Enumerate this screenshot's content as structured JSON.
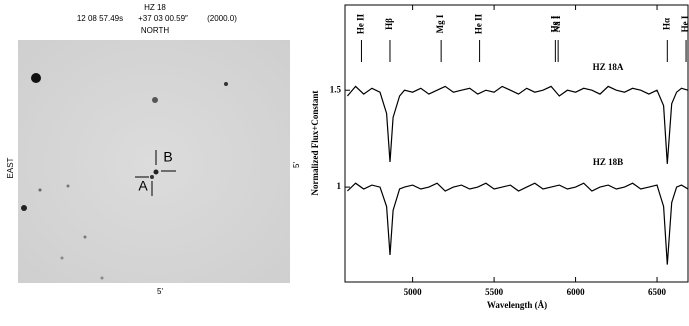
{
  "finding_chart": {
    "title": "HZ 18",
    "ra": "12 08 57.49s",
    "dec": "+37 03 00.59″",
    "epoch": "(2000.0)",
    "north": "NORTH",
    "east": "EAST",
    "scale_bottom": "5'",
    "scale_side": "5'",
    "label_a": "A",
    "label_b": "B"
  },
  "chart_data": {
    "type": "line",
    "x": [
      4600,
      4650,
      4700,
      4750,
      4800,
      4840,
      4861,
      4880,
      4920,
      4950,
      5000,
      5050,
      5100,
      5150,
      5200,
      5250,
      5300,
      5350,
      5400,
      5450,
      5500,
      5550,
      5600,
      5650,
      5700,
      5750,
      5800,
      5850,
      5900,
      5950,
      6000,
      6050,
      6100,
      6150,
      6200,
      6250,
      6300,
      6350,
      6400,
      6450,
      6500,
      6540,
      6563,
      6590,
      6620,
      6650,
      6690
    ],
    "series": [
      {
        "name": "HZ 18A",
        "color": "#000000",
        "values": [
          1.47,
          1.52,
          1.48,
          1.51,
          1.49,
          1.38,
          1.13,
          1.36,
          1.47,
          1.5,
          1.49,
          1.51,
          1.48,
          1.5,
          1.52,
          1.49,
          1.5,
          1.51,
          1.48,
          1.5,
          1.49,
          1.52,
          1.5,
          1.48,
          1.51,
          1.49,
          1.5,
          1.52,
          1.47,
          1.5,
          1.49,
          1.51,
          1.5,
          1.48,
          1.52,
          1.5,
          1.49,
          1.51,
          1.5,
          1.48,
          1.5,
          1.42,
          1.12,
          1.43,
          1.49,
          1.51,
          1.5
        ]
      },
      {
        "name": "HZ 18B",
        "color": "#000000",
        "values": [
          0.98,
          1.02,
          0.99,
          1.01,
          1.0,
          0.9,
          0.65,
          0.88,
          0.99,
          1.0,
          1.01,
          0.99,
          1.0,
          1.02,
          0.98,
          1.0,
          1.01,
          0.99,
          1.0,
          1.02,
          0.99,
          1.0,
          1.01,
          0.98,
          1.0,
          1.02,
          0.99,
          1.0,
          1.01,
          0.99,
          1.0,
          1.02,
          0.98,
          1.0,
          1.01,
          0.99,
          1.0,
          1.02,
          0.99,
          1.0,
          1.01,
          0.9,
          0.6,
          0.92,
          1.0,
          1.01,
          0.99
        ]
      }
    ],
    "xlim": [
      4585,
      6690
    ],
    "xticks": [
      5000,
      5500,
      6000,
      6500
    ],
    "ylim": [
      0.51,
      1.94
    ],
    "yticks": [
      1,
      1.5
    ],
    "x_label": "Wavelength (Å)",
    "y_label": "Normalized Flux+Constant",
    "spectral_lines": [
      {
        "label": "He II",
        "x": 4686
      },
      {
        "label": "Hβ",
        "x": 4861
      },
      {
        "label": "Mg I",
        "x": 5175
      },
      {
        "label": "He II",
        "x": 5411
      },
      {
        "label": "He I",
        "x": 5876
      },
      {
        "label": "Na I",
        "x": 5893
      },
      {
        "label": "Hα",
        "x": 6563
      },
      {
        "label": "He I",
        "x": 6678
      }
    ]
  }
}
